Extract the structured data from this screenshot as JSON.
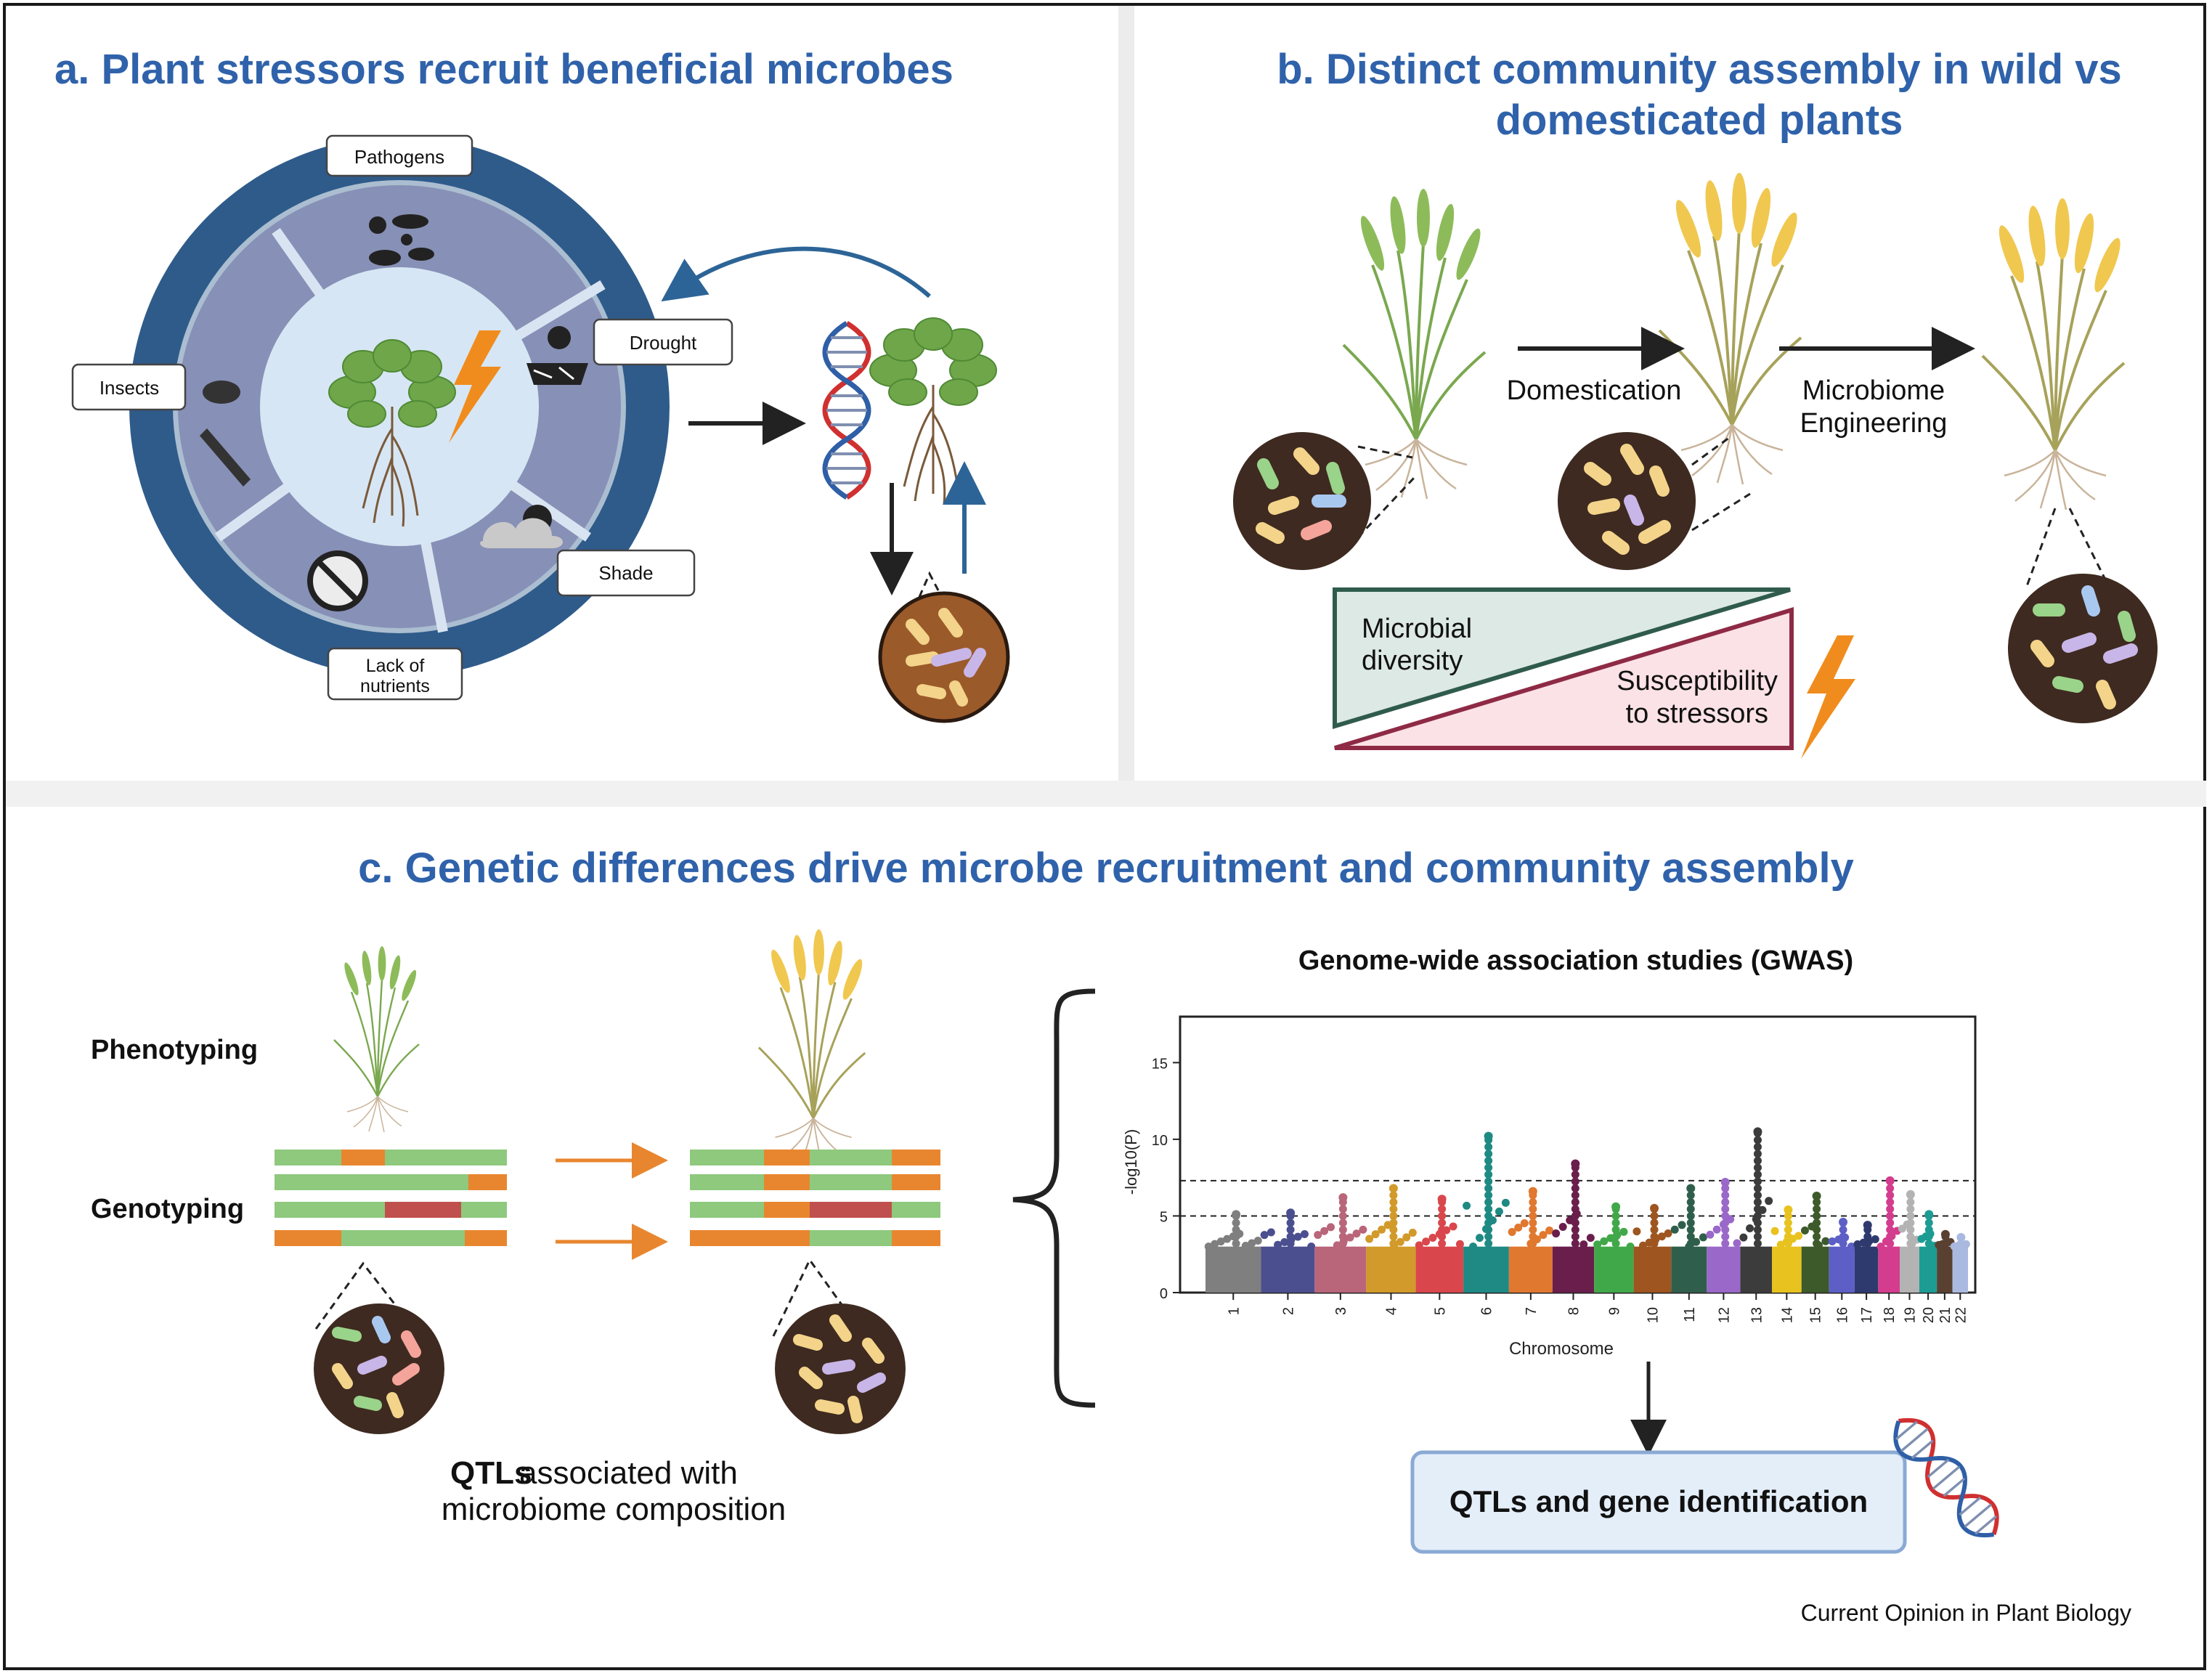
{
  "colors": {
    "title_blue": "#2f62aa",
    "ring_outer": "#2e5b8a",
    "ring_inner": "#8790b6",
    "center_bg": "#d7e6f4",
    "arrow_blue": "#2d6497",
    "soil_brown": "#3e2a20",
    "soil_brown_light": "#9b5a2a",
    "qtl_green": "#8ec97d",
    "qtl_orange": "#e8862f",
    "qtl_red": "#c0504d",
    "diversity_fill": "#dde9e4",
    "diversity_stroke": "#2f5b4d",
    "susceptibility_fill": "#fbe2e6",
    "susceptibility_stroke": "#8e2a45",
    "bolt": "#f08c1d",
    "id_box": "#e4eef9"
  },
  "panel_a": {
    "title": "a. Plant stressors recruit beneficial microbes",
    "labels": {
      "pathogens": "Pathogens",
      "drought": "Drought",
      "insects": "Insects",
      "shade": "Shade",
      "lack_line1": "Lack of",
      "lack_line2": "nutrients"
    }
  },
  "panel_b": {
    "title_line1": "b. Distinct community assembly in wild vs",
    "title_line2": "domesticated plants",
    "domestication": "Domestication",
    "engineering_line1": "Microbiome",
    "engineering_line2": "Engineering",
    "diversity_line1": "Microbial",
    "diversity_line2": "diversity",
    "susceptibility_line1": "Susceptibility",
    "susceptibility_line2": "to stressors"
  },
  "panel_c": {
    "title": "c. Genetic differences drive microbe recruitment and community assembly",
    "phenotyping": "Phenotyping",
    "genotyping": "Genotyping",
    "qtl_bold": "QTLs",
    "qtl_rest": " associated with",
    "qtl_line2": "microbiome composition",
    "gwas_title": "Genome-wide association studies (GWAS)",
    "identification": "QTLs and gene identification"
  },
  "chart_data": {
    "type": "scatter",
    "title": "",
    "xlabel": "Chromosome",
    "ylabel": "-log10(P)",
    "ylim": [
      0,
      18
    ],
    "yticks": [
      0,
      5,
      10,
      15
    ],
    "thresholds": [
      5,
      7.3
    ],
    "series": [
      {
        "chromosome": "1",
        "color": "#7f7f7f",
        "max": 5.1
      },
      {
        "chromosome": "2",
        "color": "#4b4f8f",
        "max": 5.2
      },
      {
        "chromosome": "3",
        "color": "#b9657a",
        "max": 6.2
      },
      {
        "chromosome": "4",
        "color": "#d19a2a",
        "max": 6.8
      },
      {
        "chromosome": "5",
        "color": "#d9474c",
        "max": 6.1
      },
      {
        "chromosome": "6",
        "color": "#1f8a84",
        "max": 10.2
      },
      {
        "chromosome": "7",
        "color": "#e0782f",
        "max": 6.6
      },
      {
        "chromosome": "8",
        "color": "#6a1e4c",
        "max": 8.4
      },
      {
        "chromosome": "9",
        "color": "#41a84a",
        "max": 5.6
      },
      {
        "chromosome": "10",
        "color": "#9e5520",
        "max": 5.5
      },
      {
        "chromosome": "11",
        "color": "#2f5f4c",
        "max": 6.8
      },
      {
        "chromosome": "12",
        "color": "#9a68c9",
        "max": 7.2
      },
      {
        "chromosome": "13",
        "color": "#3c3c3c",
        "max": 10.5
      },
      {
        "chromosome": "14",
        "color": "#e8c21f",
        "max": 5.4
      },
      {
        "chromosome": "15",
        "color": "#3d5a2a",
        "max": 6.3
      },
      {
        "chromosome": "16",
        "color": "#5d5fc6",
        "max": 4.6
      },
      {
        "chromosome": "17",
        "color": "#2e3a6e",
        "max": 4.4
      },
      {
        "chromosome": "18",
        "color": "#d43c8e",
        "max": 7.3
      },
      {
        "chromosome": "19",
        "color": "#b3b3b3",
        "max": 6.4
      },
      {
        "chromosome": "20",
        "color": "#1c9c93",
        "max": 5.1
      },
      {
        "chromosome": "21",
        "color": "#5a4030",
        "max": 3.8
      },
      {
        "chromosome": "22",
        "color": "#aab9e0",
        "max": 3.6
      }
    ]
  },
  "footer": {
    "journal": "Current Opinion in Plant Biology"
  }
}
